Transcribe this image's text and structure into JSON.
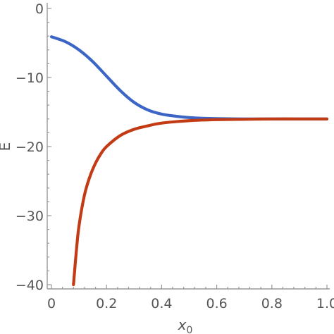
{
  "chart_data": {
    "type": "line",
    "title": "",
    "xlabel": "x",
    "xlabel_subscript": "0",
    "ylabel": "E",
    "xlim": [
      0,
      1.0
    ],
    "ylim": [
      -40,
      0
    ],
    "x_ticks": [
      0,
      0.2,
      0.4,
      0.6,
      0.8,
      1.0
    ],
    "x_tick_labels": [
      "0",
      "0.2",
      "0.4",
      "0.6",
      "0.8",
      "1.0"
    ],
    "y_ticks": [
      0,
      -10,
      -20,
      -30,
      -40
    ],
    "y_tick_labels": [
      "0",
      "−10",
      "−20",
      "−30",
      "−40"
    ],
    "grid": false,
    "legend": "none",
    "series": [
      {
        "color": "#3c66c6",
        "x": [
          0,
          0.05,
          0.1,
          0.15,
          0.2,
          0.25,
          0.3,
          0.35,
          0.4,
          0.45,
          0.5,
          0.55,
          0.6,
          0.7,
          0.8,
          0.9,
          1.0
        ],
        "y": [
          -4.1,
          -4.8,
          -6.0,
          -7.7,
          -9.8,
          -11.9,
          -13.6,
          -14.7,
          -15.3,
          -15.6,
          -15.8,
          -15.9,
          -15.95,
          -16.0,
          -16.0,
          -16.0,
          -16.0
        ]
      },
      {
        "color": "#c23b14",
        "x": [
          0.08,
          0.09,
          0.1,
          0.12,
          0.14,
          0.16,
          0.18,
          0.2,
          0.25,
          0.3,
          0.35,
          0.4,
          0.5,
          0.6,
          0.7,
          0.8,
          0.9,
          1.0
        ],
        "y": [
          -40.0,
          -35.3,
          -31.5,
          -27.0,
          -24.3,
          -22.4,
          -21.0,
          -20.0,
          -18.4,
          -17.5,
          -17.0,
          -16.6,
          -16.25,
          -16.1,
          -16.05,
          -16.0,
          -16.0,
          -16.0
        ]
      }
    ]
  }
}
